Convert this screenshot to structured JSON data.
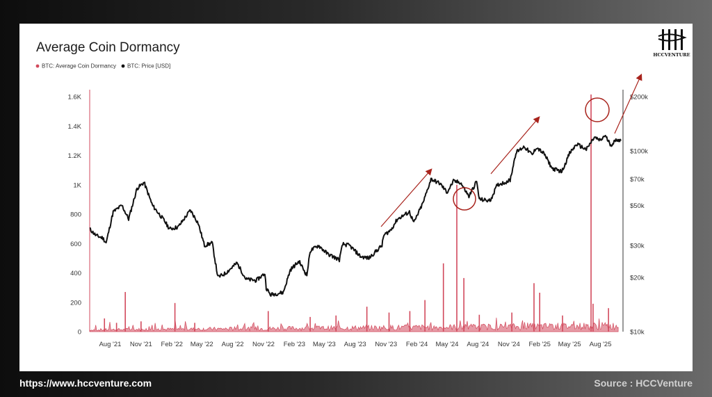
{
  "footer": {
    "website": "https://www.hccventure.com",
    "source": "Source : HCCVenture"
  },
  "logo": {
    "text": "HCCVENTURE"
  },
  "colors": {
    "dormancy": "#d2495c",
    "price": "#111111",
    "annotation": "#a8231c"
  },
  "chart_data": {
    "type": "line",
    "title": "Average Coin Dormancy",
    "legend": [
      {
        "name": "BTC: Average Coin Dormancy",
        "color": "#d2495c"
      },
      {
        "name": "BTC: Price [USD]",
        "color": "#111111"
      }
    ],
    "x_ticks": [
      "Aug '21",
      "Nov '21",
      "Feb '22",
      "May '22",
      "Aug '22",
      "Nov '22",
      "Feb '23",
      "May '23",
      "Aug '23",
      "Nov '23",
      "Feb '24",
      "May '24",
      "Aug '24",
      "Nov '24",
      "Feb '25",
      "May '25",
      "Aug '25"
    ],
    "x_tick_dates": [
      "2021-08-01",
      "2021-11-01",
      "2022-02-01",
      "2022-05-01",
      "2022-08-01",
      "2022-11-01",
      "2023-02-01",
      "2023-05-01",
      "2023-08-01",
      "2023-11-01",
      "2024-02-01",
      "2024-05-01",
      "2024-08-01",
      "2024-11-01",
      "2025-02-01",
      "2025-05-01",
      "2025-08-01"
    ],
    "x_range": [
      "2021-06-01",
      "2025-10-01"
    ],
    "y_left": {
      "ticks": [
        "0",
        "200",
        "400",
        "600",
        "800",
        "1K",
        "1.2K",
        "1.4K",
        "1.6K"
      ],
      "tick_values": [
        0,
        200,
        400,
        600,
        800,
        1000,
        1200,
        1400,
        1600
      ],
      "range": [
        0,
        1600
      ]
    },
    "y_right": {
      "scale": "log",
      "ticks": [
        "$10k",
        "$20k",
        "$30k",
        "$50k",
        "$70k",
        "$100k",
        "$200k"
      ],
      "tick_values": [
        10000,
        20000,
        30000,
        50000,
        70000,
        100000,
        200000
      ],
      "range": [
        10000,
        200000
      ]
    },
    "grid": false,
    "legend_position": "top-left",
    "series": [
      {
        "name": "BTC: Price [USD]",
        "axis": "right",
        "x": [
          "2021-06-01",
          "2021-06-20",
          "2021-07-10",
          "2021-07-20",
          "2021-08-10",
          "2021-09-05",
          "2021-09-25",
          "2021-10-20",
          "2021-11-10",
          "2021-12-05",
          "2022-01-10",
          "2022-01-25",
          "2022-02-20",
          "2022-03-28",
          "2022-04-20",
          "2022-05-09",
          "2022-06-01",
          "2022-06-18",
          "2022-07-10",
          "2022-08-14",
          "2022-09-10",
          "2022-10-10",
          "2022-11-05",
          "2022-11-09",
          "2022-11-21",
          "2022-12-30",
          "2023-01-20",
          "2023-02-15",
          "2023-03-10",
          "2023-03-20",
          "2023-04-14",
          "2023-05-10",
          "2023-06-15",
          "2023-06-25",
          "2023-07-15",
          "2023-08-18",
          "2023-09-11",
          "2023-10-20",
          "2023-10-25",
          "2023-11-15",
          "2023-12-05",
          "2024-01-10",
          "2024-01-23",
          "2024-02-20",
          "2024-03-14",
          "2024-04-10",
          "2024-05-01",
          "2024-05-20",
          "2024-06-10",
          "2024-07-05",
          "2024-07-28",
          "2024-08-05",
          "2024-09-06",
          "2024-09-28",
          "2024-10-20",
          "2024-11-05",
          "2024-11-22",
          "2024-12-17",
          "2025-01-10",
          "2025-01-22",
          "2025-02-15",
          "2025-03-10",
          "2025-04-08",
          "2025-05-01",
          "2025-05-22",
          "2025-06-20",
          "2025-07-14",
          "2025-08-01",
          "2025-08-14",
          "2025-09-01",
          "2025-09-20",
          "2025-10-01"
        ],
        "values": [
          37000,
          34000,
          33000,
          31000,
          46000,
          50000,
          42000,
          62000,
          67000,
          50000,
          41000,
          37000,
          38000,
          47000,
          40000,
          30000,
          31000,
          20000,
          21000,
          24000,
          19500,
          19200,
          21000,
          17500,
          16000,
          16500,
          22000,
          24500,
          20500,
          28000,
          30000,
          27000,
          25000,
          30500,
          30000,
          26000,
          25500,
          30000,
          34000,
          36500,
          42000,
          46000,
          40000,
          52000,
          70000,
          66000,
          59000,
          68000,
          67000,
          56000,
          68000,
          54000,
          53000,
          65000,
          67000,
          69000,
          98000,
          106000,
          95000,
          105000,
          96000,
          80000,
          77000,
          97000,
          109000,
          102000,
          119000,
          114000,
          122000,
          108000,
          116000,
          114000
        ]
      },
      {
        "name": "BTC: Average Coin Dormancy",
        "axis": "left",
        "baseline": 30,
        "spikes": [
          {
            "x": "2021-07-15",
            "value": 90
          },
          {
            "x": "2021-08-20",
            "value": 60
          },
          {
            "x": "2021-09-15",
            "value": 270
          },
          {
            "x": "2021-11-01",
            "value": 70
          },
          {
            "x": "2022-02-10",
            "value": 195
          },
          {
            "x": "2022-04-10",
            "value": 60
          },
          {
            "x": "2022-11-15",
            "value": 140
          },
          {
            "x": "2023-03-20",
            "value": 100
          },
          {
            "x": "2023-06-05",
            "value": 110
          },
          {
            "x": "2023-09-05",
            "value": 170
          },
          {
            "x": "2023-11-10",
            "value": 130
          },
          {
            "x": "2024-01-11",
            "value": 140
          },
          {
            "x": "2024-02-25",
            "value": 215
          },
          {
            "x": "2024-04-20",
            "value": 465
          },
          {
            "x": "2024-05-30",
            "value": 1000
          },
          {
            "x": "2024-06-20",
            "value": 365
          },
          {
            "x": "2024-08-05",
            "value": 115
          },
          {
            "x": "2024-11-10",
            "value": 130
          },
          {
            "x": "2025-01-15",
            "value": 330
          },
          {
            "x": "2025-02-01",
            "value": 265
          },
          {
            "x": "2025-04-10",
            "value": 110
          },
          {
            "x": "2025-07-04",
            "value": 1615
          },
          {
            "x": "2025-07-10",
            "value": 190
          },
          {
            "x": "2025-08-25",
            "value": 160
          }
        ]
      }
    ]
  }
}
